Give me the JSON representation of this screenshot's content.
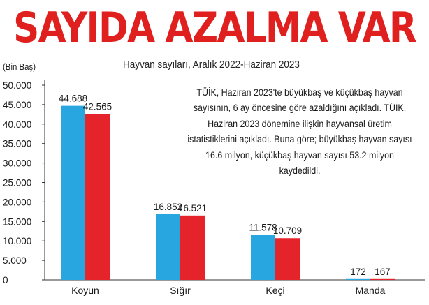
{
  "headline": "SAYIDA AZALMA VAR",
  "subtitle": "Hayvan sayıları, Aralık 2022-Haziran 2023",
  "unit_label": "(Bin Baş)",
  "note": "TÜİK, Haziran 2023'te büyükbaş ve küçükbaş hayvan sayısının, 6 ay öncesine göre azaldığını açıkladı. TÜİK, Haziran 2023 dönemine ilişkin hayvansal üretim istatistiklerini açıkladı. Buna göre; büyükbaş hayvan sayısı 16.6 milyon, küçükbaş hayvan sayısı 53.2 milyon kaydedildi.",
  "colors": {
    "headline": "#e0201f",
    "series_a": "#27a6e0",
    "series_b": "#e5232a"
  },
  "chart_data": {
    "type": "bar",
    "categories": [
      "Koyun",
      "Sığır",
      "Keçi",
      "Manda"
    ],
    "series": [
      {
        "values": [
          44688,
          16852,
          11578,
          172
        ],
        "labels": [
          "44.688",
          "16.852",
          "11.578",
          "172"
        ]
      },
      {
        "values": [
          42565,
          16521,
          10709,
          167
        ],
        "labels": [
          "42.565",
          "16.521",
          "10.709",
          "167"
        ]
      }
    ],
    "ylim": [
      0,
      50000
    ],
    "yticks": [
      0,
      5000,
      10000,
      15000,
      20000,
      25000,
      30000,
      35000,
      40000,
      45000,
      50000
    ],
    "ytick_labels": [
      "0",
      "5.000",
      "10.000",
      "15.000",
      "20.000",
      "25.000",
      "30.000",
      "35.000",
      "40.000",
      "45.000",
      "50.000"
    ],
    "grid": false,
    "legend": "none"
  }
}
